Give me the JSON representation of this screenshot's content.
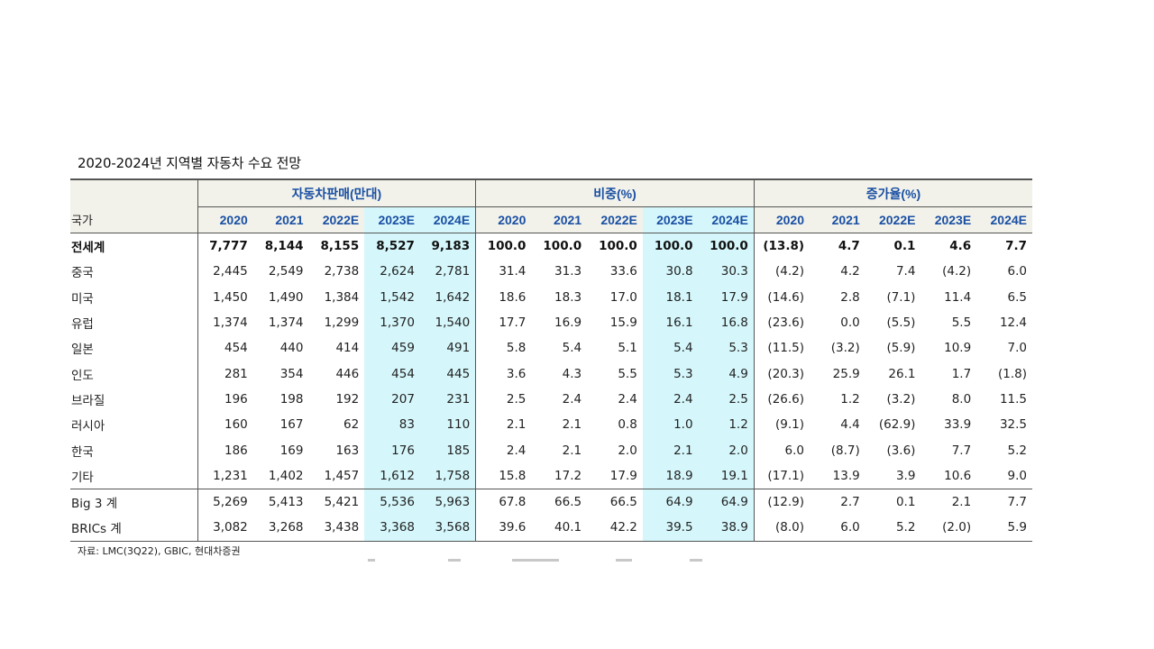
{
  "title": "2020-2024년 지역별 자동차 수요 전망",
  "groups": [
    "자동차판매(만대)",
    "비중(%)",
    "증가율(%)"
  ],
  "country_header": "국가",
  "years": [
    "2020",
    "2021",
    "2022E",
    "2023E",
    "2024E"
  ],
  "rows": [
    {
      "name": "전세계",
      "values": [
        "7,777",
        "8,144",
        "8,155",
        "8,527",
        "9,183",
        "100.0",
        "100.0",
        "100.0",
        "100.0",
        "100.0",
        "(13.8)",
        "4.7",
        "0.1",
        "4.6",
        "7.7"
      ]
    },
    {
      "name": "중국",
      "values": [
        "2,445",
        "2,549",
        "2,738",
        "2,624",
        "2,781",
        "31.4",
        "31.3",
        "33.6",
        "30.8",
        "30.3",
        "(4.2)",
        "4.2",
        "7.4",
        "(4.2)",
        "6.0"
      ]
    },
    {
      "name": "미국",
      "values": [
        "1,450",
        "1,490",
        "1,384",
        "1,542",
        "1,642",
        "18.6",
        "18.3",
        "17.0",
        "18.1",
        "17.9",
        "(14.6)",
        "2.8",
        "(7.1)",
        "11.4",
        "6.5"
      ]
    },
    {
      "name": "유럽",
      "values": [
        "1,374",
        "1,374",
        "1,299",
        "1,370",
        "1,540",
        "17.7",
        "16.9",
        "15.9",
        "16.1",
        "16.8",
        "(23.6)",
        "0.0",
        "(5.5)",
        "5.5",
        "12.4"
      ]
    },
    {
      "name": "일본",
      "values": [
        "454",
        "440",
        "414",
        "459",
        "491",
        "5.8",
        "5.4",
        "5.1",
        "5.4",
        "5.3",
        "(11.5)",
        "(3.2)",
        "(5.9)",
        "10.9",
        "7.0"
      ]
    },
    {
      "name": "인도",
      "values": [
        "281",
        "354",
        "446",
        "454",
        "445",
        "3.6",
        "4.3",
        "5.5",
        "5.3",
        "4.9",
        "(20.3)",
        "25.9",
        "26.1",
        "1.7",
        "(1.8)"
      ]
    },
    {
      "name": "브라질",
      "values": [
        "196",
        "198",
        "192",
        "207",
        "231",
        "2.5",
        "2.4",
        "2.4",
        "2.4",
        "2.5",
        "(26.6)",
        "1.2",
        "(3.2)",
        "8.0",
        "11.5"
      ]
    },
    {
      "name": "러시아",
      "values": [
        "160",
        "167",
        "62",
        "83",
        "110",
        "2.1",
        "2.1",
        "0.8",
        "1.0",
        "1.2",
        "(9.1)",
        "4.4",
        "(62.9)",
        "33.9",
        "32.5"
      ]
    },
    {
      "name": "한국",
      "values": [
        "186",
        "169",
        "163",
        "176",
        "185",
        "2.4",
        "2.1",
        "2.0",
        "2.1",
        "2.0",
        "6.0",
        "(8.7)",
        "(3.6)",
        "7.7",
        "5.2"
      ]
    },
    {
      "name": "기타",
      "values": [
        "1,231",
        "1,402",
        "1,457",
        "1,612",
        "1,758",
        "15.8",
        "17.2",
        "17.9",
        "18.9",
        "19.1",
        "(17.1)",
        "13.9",
        "3.9",
        "10.6",
        "9.0"
      ]
    },
    {
      "name": "Big 3 계",
      "values": [
        "5,269",
        "5,413",
        "5,421",
        "5,536",
        "5,963",
        "67.8",
        "66.5",
        "66.5",
        "64.9",
        "64.9",
        "(12.9)",
        "2.7",
        "0.1",
        "2.1",
        "7.7"
      ]
    },
    {
      "name": "BRICs 계",
      "values": [
        "3,082",
        "3,268",
        "3,438",
        "3,368",
        "3,568",
        "39.6",
        "40.1",
        "42.2",
        "39.5",
        "38.9",
        "(8.0)",
        "6.0",
        "5.2",
        "(2.0)",
        "5.9"
      ]
    }
  ],
  "source": "자료: LMC(3Q22), GBIC, 현대차증권",
  "colors": {
    "header_text": "#1a4fa3",
    "highlight": "#d5f7fb",
    "header_bg": "#f2f2ea"
  }
}
